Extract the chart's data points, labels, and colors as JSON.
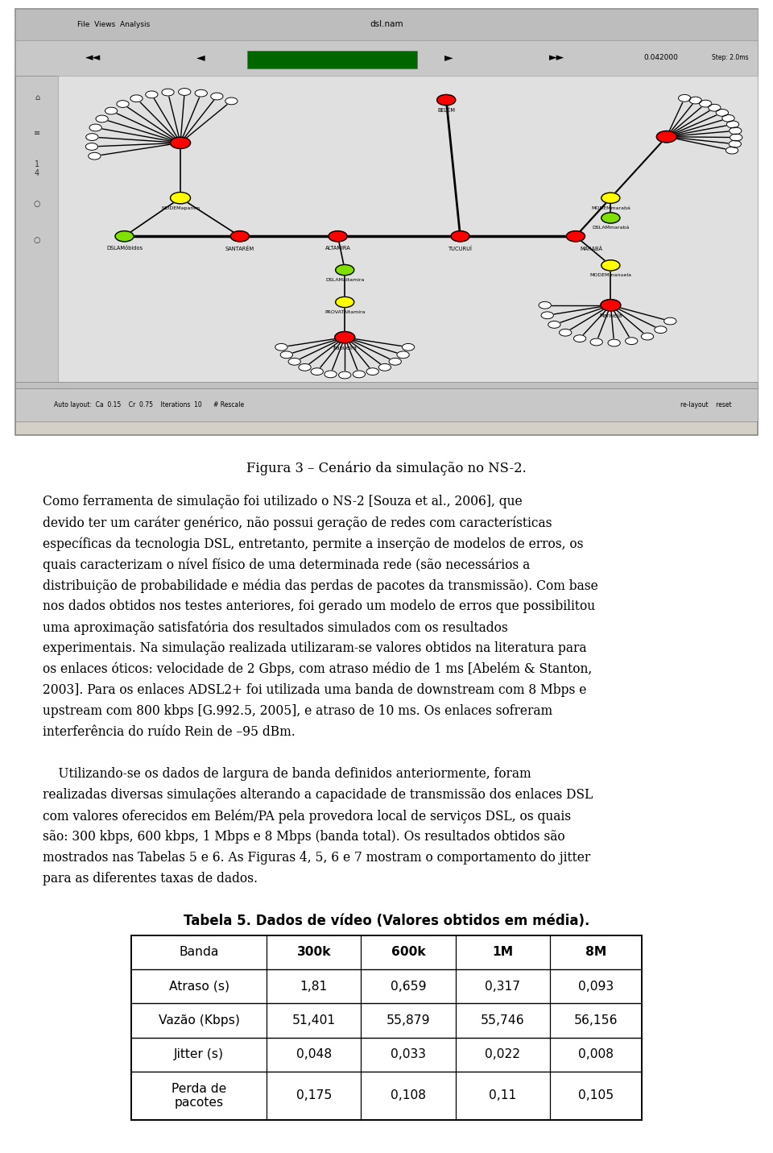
{
  "figure_caption": "Figura 3 – Cenário da simulação no NS-2.",
  "table_title": "Tabela 5. Dados de vídeo (Valores obtidos em média).",
  "table_headers": [
    "Banda",
    "300k",
    "600k",
    "1M",
    "8M"
  ],
  "table_rows": [
    [
      "Atraso (s)",
      "1,81",
      "0,659",
      "0,317",
      "0,093"
    ],
    [
      "Vazão (Kbps)",
      "51,401",
      "55,879",
      "55,746",
      "56,156"
    ],
    [
      "Jitter (s)",
      "0,048",
      "0,033",
      "0,022",
      "0,008"
    ],
    [
      "Perda de\npacotes",
      "0,175",
      "0,108",
      "0,11",
      "0,105"
    ]
  ],
  "p1_lines": [
    "Como ferramenta de simulação foi utilizado o NS-2 [Souza et al., 2006], que",
    "devido ter um caráter genérico, não possui geração de redes com características",
    "específicas da tecnologia DSL, entretanto, permite a inserção de modelos de erros, os",
    "quais caracterizam o nível físico de uma determinada rede (são necessários a",
    "distribuição de probabilidade e média das perdas de pacotes da transmissão). Com base",
    "nos dados obtidos nos testes anteriores, foi gerado um modelo de erros que possibilitou",
    "uma aproximação satisfatória dos resultados simulados com os resultados",
    "experimentais. Na simulação realizada utilizaram-se valores obtidos na literatura para",
    "os enlaces óticos: velocidade de 2 Gbps, com atraso médio de 1 ms [Abelém & Stanton,",
    "2003]. Para os enlaces ADSL2+ foi utilizada uma banda de downstream com 8 Mbps e",
    "upstream com 800 kbps [G.992.5, 2005], e atraso de 10 ms. Os enlaces sofreram",
    "interferência do ruído Rein de –95 dBm."
  ],
  "p2_lines": [
    "    Utilizando-se os dados de largura de banda definidos anteriormente, foram",
    "realizadas diversas simulações alterando a capacidade de transmissão dos enlaces DSL",
    "com valores oferecidos em Belém/PA pela provedora local de serviços DSL, os quais",
    "são: 300 kbps, 600 kbps, 1 Mbps e 8 Mbps (banda total). Os resultados obtidos são",
    "mostrados nas Tabelas 5 e 6. As Figuras 4, 5, 6 e 7 mostram o comportamento do jitter",
    "para as diferentes taxas de dados."
  ],
  "bg_color": "#ffffff",
  "text_color": "#000000",
  "font_size_body": 11.2,
  "font_size_caption": 11.8,
  "font_size_table_title": 12.0,
  "font_size_table": 11.2
}
